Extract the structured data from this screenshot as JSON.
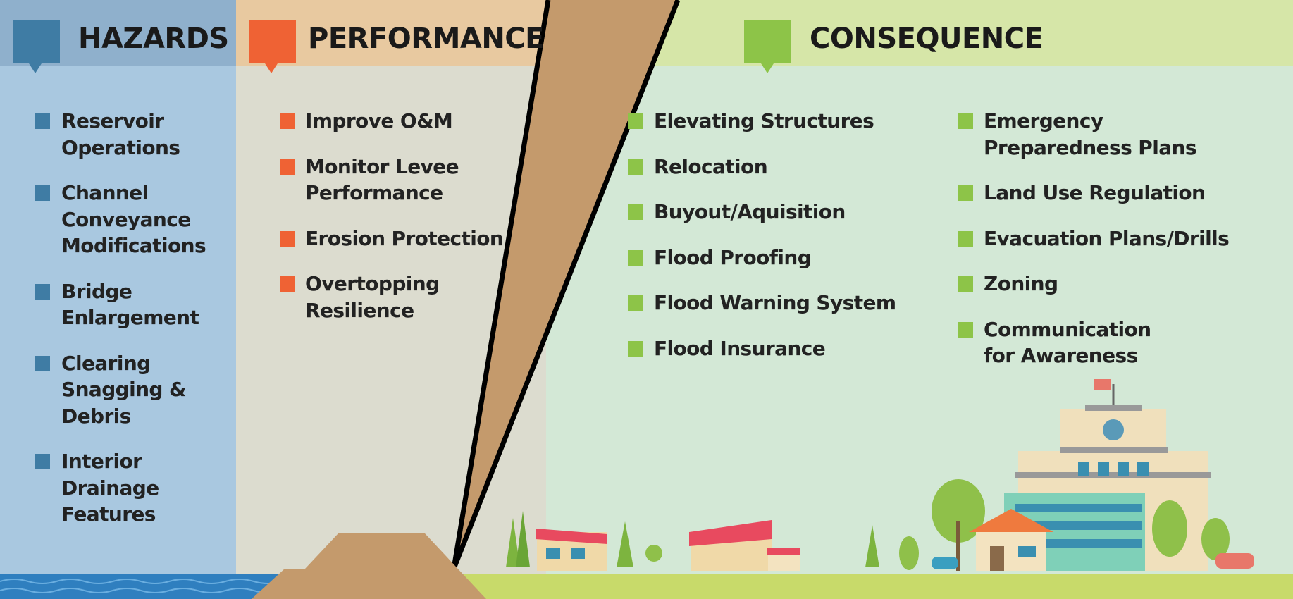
{
  "columns": [
    {
      "title": "HAZARDS",
      "items": [
        [
          "Reservoir",
          "Operations"
        ],
        [
          "Channel",
          "Conveyance",
          "Modifications"
        ],
        [
          "Bridge",
          "Enlargement"
        ],
        [
          "Clearing",
          "Snagging &",
          "Debris"
        ],
        [
          "Interior",
          "Drainage",
          "Features"
        ]
      ]
    },
    {
      "title": "PERFORMANCE",
      "items": [
        [
          "Improve O&M"
        ],
        [
          "Monitor Levee",
          "Performance"
        ],
        [
          "Erosion Protection"
        ],
        [
          "Overtopping",
          "Resilience"
        ]
      ]
    },
    {
      "title": "CONSEQUENCE",
      "items": [
        [
          "Elevating Structures"
        ],
        [
          "Relocation"
        ],
        [
          "Buyout/Aquisition"
        ],
        [
          "Flood Proofing"
        ],
        [
          "Flood Warning System"
        ],
        [
          "Flood Insurance"
        ]
      ],
      "items2": [
        [
          "Emergency",
          "Preparedness Plans"
        ],
        [
          "Land Use Regulation"
        ],
        [
          "Evacuation Plans/Drills"
        ],
        [
          "Zoning"
        ],
        [
          "Communication",
          "for Awareness"
        ]
      ]
    }
  ]
}
